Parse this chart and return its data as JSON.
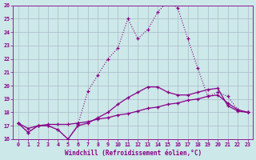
{
  "xlabel": "Windchill (Refroidissement éolien,°C)",
  "xlim": [
    -0.5,
    23.5
  ],
  "ylim": [
    16,
    26
  ],
  "yticks": [
    16,
    17,
    18,
    19,
    20,
    21,
    22,
    23,
    24,
    25,
    26
  ],
  "xticks": [
    0,
    1,
    2,
    3,
    4,
    5,
    6,
    7,
    8,
    9,
    10,
    11,
    12,
    13,
    14,
    15,
    16,
    17,
    18,
    19,
    20,
    21,
    22,
    23
  ],
  "bg_color": "#cde8e8",
  "line_color": "#880088",
  "grid_color": "#aabbcc",
  "series1_x": [
    0,
    1,
    2,
    3,
    4,
    5,
    6,
    7,
    8,
    9,
    10,
    11,
    12,
    13,
    14,
    15,
    16,
    17,
    18,
    19,
    20,
    21,
    22,
    23
  ],
  "series1_y": [
    17.2,
    16.5,
    17.0,
    17.0,
    16.7,
    16.0,
    17.1,
    19.6,
    20.8,
    22.0,
    22.8,
    25.0,
    23.5,
    24.2,
    25.5,
    26.3,
    25.8,
    23.5,
    21.3,
    19.2,
    19.5,
    19.2,
    18.2,
    18.0
  ],
  "series2_x": [
    0,
    1,
    2,
    3,
    4,
    5,
    6,
    7,
    8,
    9,
    10,
    11,
    12,
    13,
    14,
    15,
    16,
    17,
    18,
    19,
    20,
    21,
    22,
    23
  ],
  "series2_y": [
    17.2,
    16.5,
    17.0,
    17.0,
    16.7,
    16.0,
    17.0,
    17.2,
    17.6,
    18.0,
    18.6,
    19.1,
    19.5,
    19.9,
    19.9,
    19.5,
    19.3,
    19.3,
    19.5,
    19.7,
    19.8,
    18.5,
    18.1,
    18.0
  ],
  "series3_x": [
    0,
    1,
    2,
    3,
    4,
    5,
    6,
    7,
    8,
    9,
    10,
    11,
    12,
    13,
    14,
    15,
    16,
    17,
    18,
    19,
    20,
    21,
    22,
    23
  ],
  "series3_y": [
    17.2,
    16.8,
    17.0,
    17.1,
    17.1,
    17.1,
    17.2,
    17.3,
    17.5,
    17.6,
    17.8,
    17.9,
    18.1,
    18.3,
    18.4,
    18.6,
    18.7,
    18.9,
    19.0,
    19.2,
    19.3,
    18.7,
    18.2,
    18.0
  ]
}
